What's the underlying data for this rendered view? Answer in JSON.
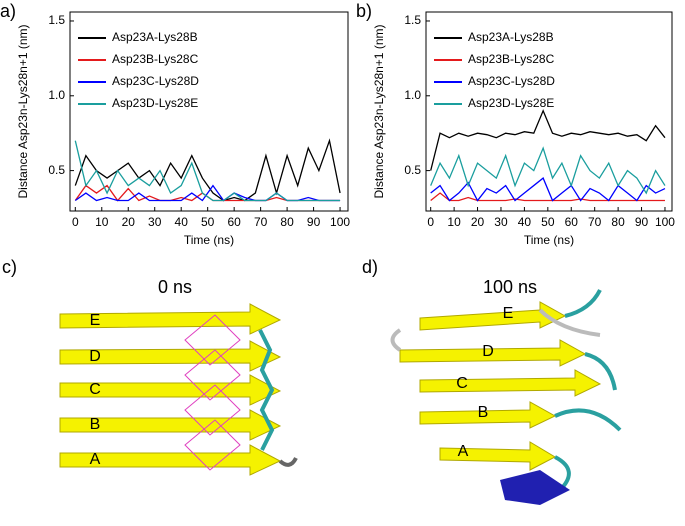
{
  "chart_data": [
    {
      "type": "line",
      "panel_label": "a)",
      "x_label": "Time (ns)",
      "y_label": "Distance Asp23n-Lys28n+1 (nm)",
      "x": [
        0,
        4,
        8,
        12,
        16,
        20,
        24,
        28,
        32,
        36,
        40,
        44,
        48,
        52,
        56,
        60,
        64,
        68,
        72,
        76,
        80,
        84,
        88,
        92,
        96,
        100
      ],
      "xlim": [
        -2,
        103
      ],
      "xticks": [
        0,
        10,
        20,
        30,
        40,
        50,
        60,
        70,
        80,
        90,
        100
      ],
      "ylim": [
        0.23,
        1.56
      ],
      "yticks": [
        0.5,
        {
          "value": 1,
          "label": "1.0"
        },
        1.5
      ],
      "series": [
        {
          "name": "Asp23A-Lys28B",
          "color": "#000000",
          "values": [
            0.4,
            0.6,
            0.5,
            0.45,
            0.5,
            0.55,
            0.45,
            0.5,
            0.4,
            0.55,
            0.45,
            0.6,
            0.45,
            0.35,
            0.3,
            0.32,
            0.3,
            0.35,
            0.6,
            0.35,
            0.6,
            0.4,
            0.65,
            0.5,
            0.7,
            0.35
          ]
        },
        {
          "name": "Asp23B-Lys28C",
          "color": "#e41a1c",
          "values": [
            0.3,
            0.4,
            0.35,
            0.4,
            0.3,
            0.38,
            0.3,
            0.33,
            0.3,
            0.3,
            0.32,
            0.3,
            0.35,
            0.3,
            0.3,
            0.3,
            0.3,
            0.3,
            0.3,
            0.32,
            0.3,
            0.3,
            0.3,
            0.3,
            0.3,
            0.3
          ]
        },
        {
          "name": "Asp23C-Lys28D",
          "color": "#0000ff",
          "values": [
            0.3,
            0.35,
            0.3,
            0.32,
            0.3,
            0.3,
            0.35,
            0.3,
            0.3,
            0.3,
            0.3,
            0.35,
            0.3,
            0.4,
            0.3,
            0.35,
            0.32,
            0.3,
            0.3,
            0.35,
            0.3,
            0.3,
            0.32,
            0.3,
            0.3,
            0.3
          ]
        },
        {
          "name": "Asp23D-Lys28E",
          "color": "#1a9e9e",
          "values": [
            0.7,
            0.4,
            0.5,
            0.35,
            0.5,
            0.4,
            0.45,
            0.4,
            0.5,
            0.35,
            0.4,
            0.55,
            0.35,
            0.3,
            0.3,
            0.35,
            0.3,
            0.3,
            0.3,
            0.35,
            0.3,
            0.3,
            0.3,
            0.3,
            0.3,
            0.3
          ]
        }
      ]
    },
    {
      "type": "line",
      "panel_label": "b)",
      "x_label": "Time (ns)",
      "y_label": "Distance Asp23n-Lys28n+1 (nm)",
      "x": [
        0,
        4,
        8,
        12,
        16,
        20,
        24,
        28,
        32,
        36,
        40,
        44,
        48,
        52,
        56,
        60,
        64,
        68,
        72,
        76,
        80,
        84,
        88,
        92,
        96,
        100
      ],
      "xlim": [
        -2,
        103
      ],
      "xticks": [
        0,
        10,
        20,
        30,
        40,
        50,
        60,
        70,
        80,
        90,
        100
      ],
      "ylim": [
        0.23,
        1.56
      ],
      "yticks": [
        0.5,
        {
          "value": 1,
          "label": "1.0"
        },
        1.5
      ],
      "series": [
        {
          "name": "Asp23A-Lys28B",
          "color": "#000000",
          "values": [
            0.5,
            0.75,
            0.72,
            0.75,
            0.73,
            0.75,
            0.74,
            0.72,
            0.75,
            0.74,
            0.76,
            0.75,
            0.9,
            0.75,
            0.73,
            0.75,
            0.74,
            0.76,
            0.75,
            0.74,
            0.75,
            0.73,
            0.74,
            0.7,
            0.8,
            0.72
          ]
        },
        {
          "name": "Asp23B-Lys28C",
          "color": "#e41a1c",
          "values": [
            0.3,
            0.35,
            0.3,
            0.3,
            0.32,
            0.3,
            0.3,
            0.3,
            0.3,
            0.31,
            0.3,
            0.3,
            0.3,
            0.3,
            0.3,
            0.3,
            0.31,
            0.3,
            0.3,
            0.3,
            0.3,
            0.3,
            0.3,
            0.3,
            0.3,
            0.3
          ]
        },
        {
          "name": "Asp23C-Lys28D",
          "color": "#0000ff",
          "values": [
            0.35,
            0.4,
            0.3,
            0.35,
            0.42,
            0.3,
            0.38,
            0.35,
            0.4,
            0.3,
            0.35,
            0.4,
            0.45,
            0.3,
            0.35,
            0.4,
            0.3,
            0.38,
            0.35,
            0.3,
            0.4,
            0.35,
            0.3,
            0.4,
            0.35,
            0.38
          ]
        },
        {
          "name": "Asp23D-Lys28E",
          "color": "#1a9e9e",
          "values": [
            0.4,
            0.55,
            0.45,
            0.6,
            0.4,
            0.55,
            0.5,
            0.45,
            0.6,
            0.4,
            0.55,
            0.5,
            0.65,
            0.45,
            0.55,
            0.4,
            0.6,
            0.5,
            0.45,
            0.55,
            0.4,
            0.5,
            0.45,
            0.35,
            0.5,
            0.4
          ]
        }
      ]
    }
  ],
  "panels": [
    {
      "label": "c)",
      "title": "0 ns",
      "strands": [
        "E",
        "D",
        "C",
        "B",
        "A"
      ]
    },
    {
      "label": "d)",
      "title": "100 ns",
      "strands": [
        "E",
        "D",
        "C",
        "B",
        "A"
      ]
    }
  ]
}
